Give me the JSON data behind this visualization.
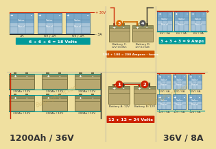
{
  "bg_color": "#f0e0a0",
  "bg_section": "#f5ebb8",
  "title_left": "1200Ah / 36V",
  "title_right": "36V / 8A",
  "series_label": "6 + 6 + 6 = 18 Volts",
  "parallel_label": "3 + 3 + 3 = 9 Amps",
  "battery_series_label": "12 + 12 = 24 Volts",
  "battery_parallel_label": "100 + 100 = 200 Ampere - hours",
  "panel_color_top": "#7aa8c8",
  "panel_color_bot": "#a8c4d8",
  "panel_border": "#4a7a9a",
  "panel_grid": "#5a8aaa",
  "battery_body": "#b8a870",
  "battery_dark": "#7a7040",
  "battery_top": "#909060",
  "wire_red": "#cc2200",
  "wire_black": "#222222",
  "wire_teal": "#009999",
  "wire_orange": "#cc6600",
  "label_teal": "#009999",
  "label_orange": "#cc5500",
  "label_red": "#cc2200",
  "circle_orange": "#dd6600",
  "circle_red": "#cc2200",
  "watermark": "#c8a855"
}
